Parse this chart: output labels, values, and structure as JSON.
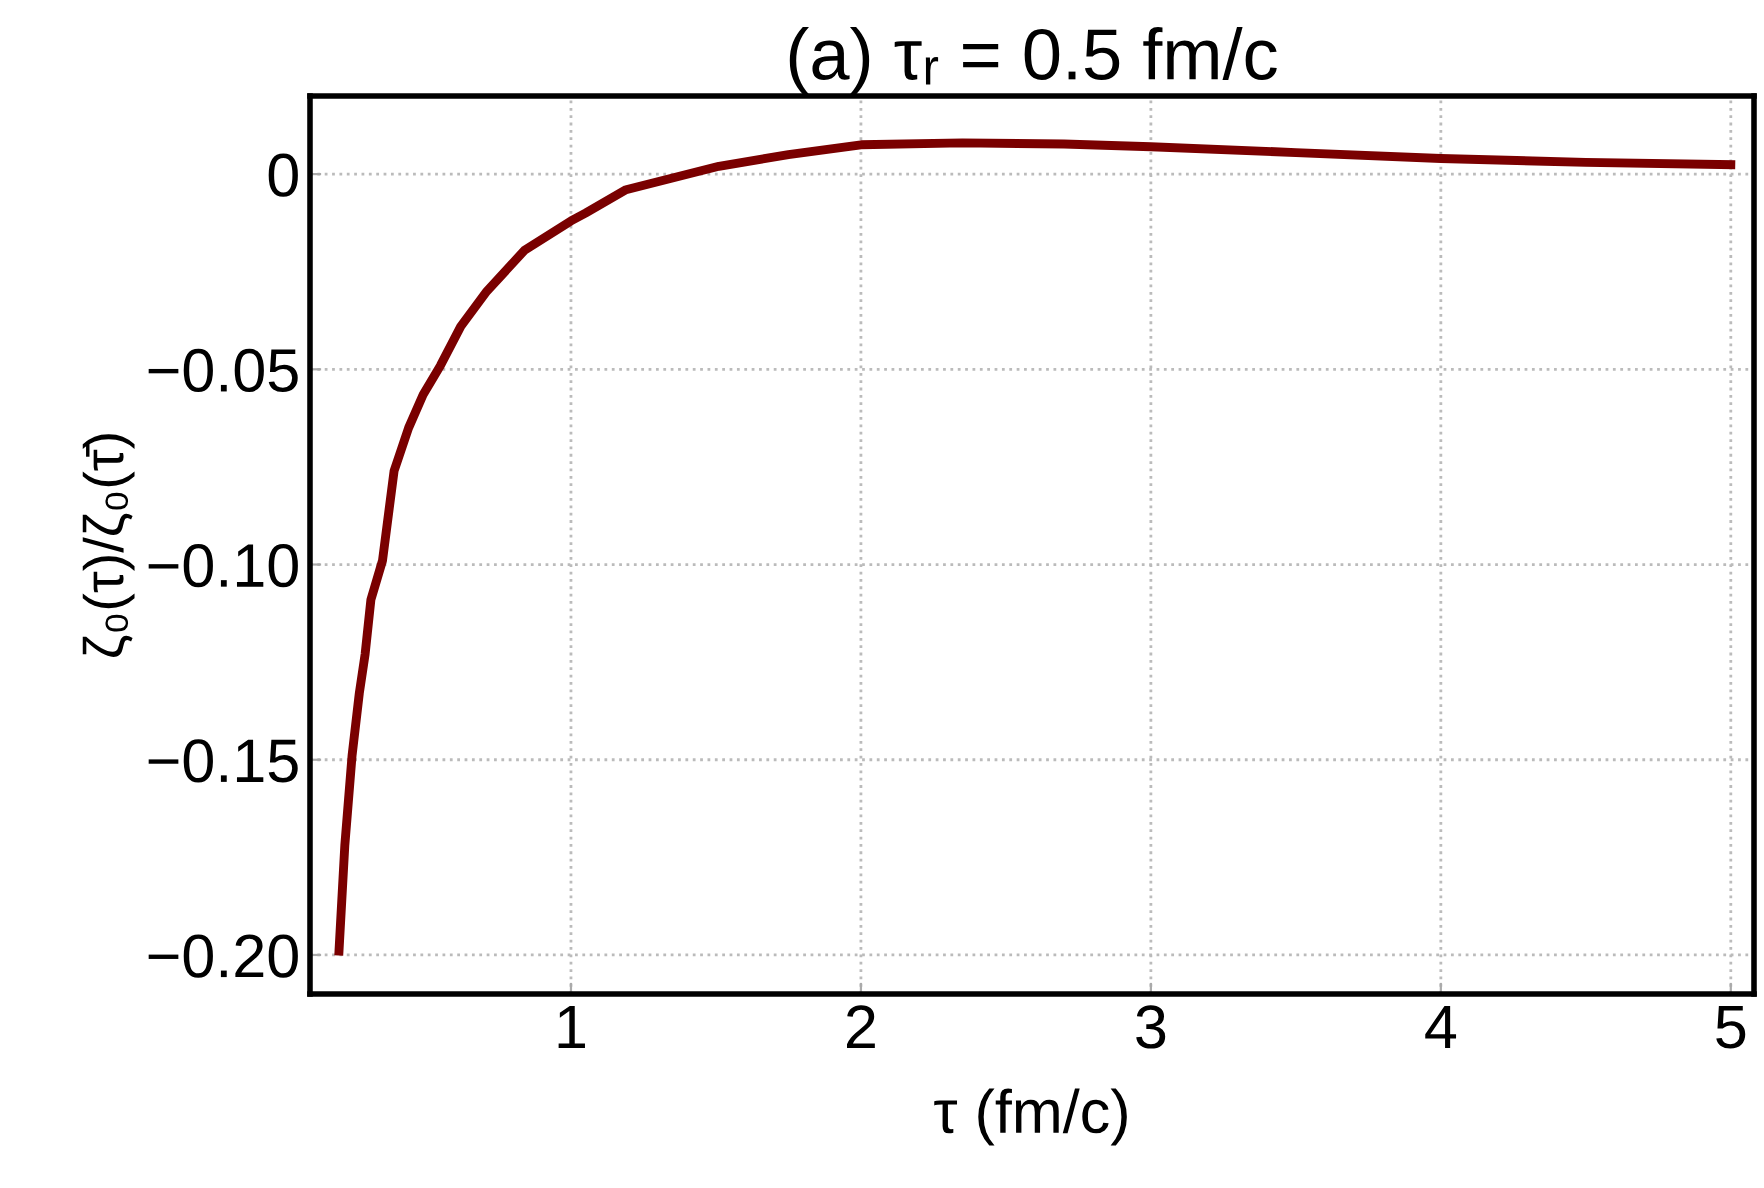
{
  "chart_data": {
    "type": "line",
    "title": "(a) τᵣ = 0.5 fm/c",
    "xlabel": "τ (fm/c)",
    "ylabel": "ζ₀(τ)/ζ₀(τ̄)",
    "series": [
      {
        "color": "#7a0000",
        "x": [
          0.2,
          0.22,
          0.245,
          0.27,
          0.29,
          0.31,
          0.35,
          0.39,
          0.44,
          0.49,
          0.55,
          0.62,
          0.71,
          0.84,
          1.0,
          1.05,
          1.19,
          1.35,
          1.51,
          1.75,
          2.0,
          2.35,
          2.7,
          3.0,
          3.5,
          4.0,
          4.5,
          5.0
        ],
        "values": [
          -0.199,
          -0.172,
          -0.149,
          -0.133,
          -0.123,
          -0.109,
          -0.099,
          -0.076,
          -0.065,
          -0.0565,
          -0.049,
          -0.039,
          -0.03,
          -0.0195,
          -0.012,
          -0.01,
          -0.004,
          -0.001,
          0.002,
          0.005,
          0.0075,
          0.008,
          0.0077,
          0.007,
          0.0055,
          0.004,
          0.003,
          0.0024
        ]
      }
    ],
    "xlim": [
      0.1,
      5.08
    ],
    "ylim": [
      -0.21,
      0.02
    ],
    "xticks": [
      1,
      2,
      3,
      4,
      5
    ],
    "yticks": [
      0,
      {
        "value": -0.05,
        "label": "−0.05"
      },
      {
        "value": -0.1,
        "label": "−0.10"
      },
      {
        "value": -0.15,
        "label": "−0.15"
      },
      {
        "value": -0.2,
        "label": "−0.20"
      }
    ],
    "grid": true,
    "line_style": "solid",
    "marker": "none",
    "legend": false
  }
}
